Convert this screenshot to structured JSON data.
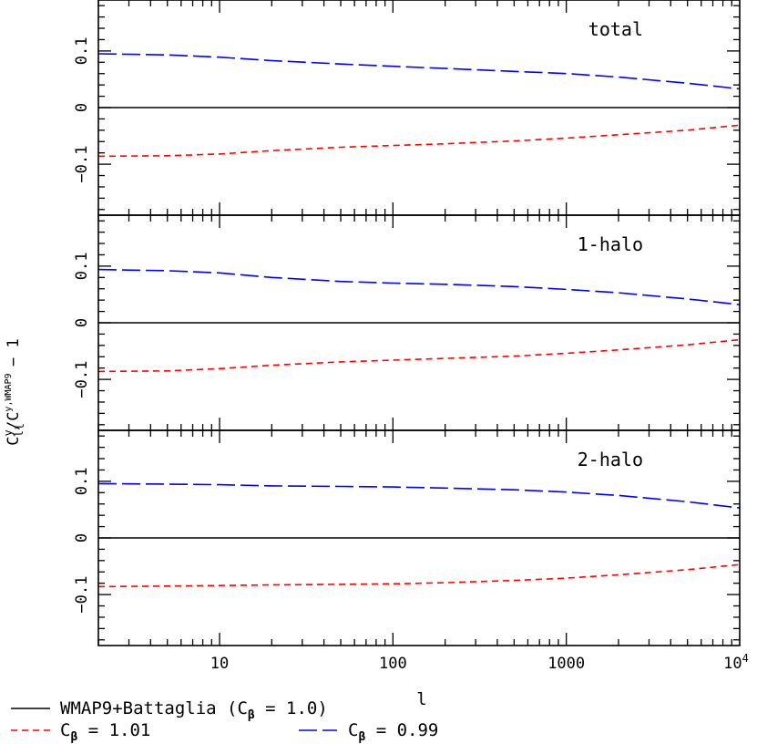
{
  "chart_data": {
    "type": "line",
    "xscale": "log",
    "xlim": [
      2,
      10000
    ],
    "ylim": [
      -0.19,
      0.19
    ],
    "xlabel": "l",
    "ylabel": "C_l^y/C_l^{y,WMAP9} − 1",
    "ylabel_main": "C",
    "ylabel_sup1": "y",
    "ylabel_sub1": "l",
    "ylabel_slash": "/C",
    "ylabel_sup2": "y,WMAP9",
    "ylabel_sub2": "l",
    "ylabel_tail": " − 1",
    "x_ticks": [
      {
        "value": 10,
        "label": "10"
      },
      {
        "value": 100,
        "label": "100"
      },
      {
        "value": 1000,
        "label": "1000"
      },
      {
        "value": 10000,
        "label": "10",
        "sup": "4"
      }
    ],
    "y_ticks": [
      {
        "value": 0.1,
        "label": "0.1"
      },
      {
        "value": 0,
        "label": "0"
      },
      {
        "value": -0.1,
        "label": "−0.1"
      }
    ],
    "legend": {
      "position": "bottom",
      "entries": [
        {
          "label": "WMAP9+Battaglia (C",
          "sub": "β",
          "tail": " = 1.0)",
          "style": "solid",
          "color": "#000000"
        },
        {
          "label": "C",
          "sub": "β",
          "tail": " = 1.01",
          "style": "short-dash",
          "color": "#ff0000"
        },
        {
          "label": "C",
          "sub": "β",
          "tail": " = 0.99",
          "style": "long-dash",
          "color": "#0000ff"
        }
      ]
    },
    "panels": [
      {
        "title": "total",
        "series": [
          {
            "style": "solid",
            "color": "#000000",
            "x": [
              2,
              10000
            ],
            "y": [
              0,
              0
            ]
          },
          {
            "style": "short-dash",
            "color": "#ff0000",
            "x": [
              2,
              5,
              10,
              20,
              50,
              100,
              200,
              500,
              1000,
              2000,
              5000,
              10000
            ],
            "y": [
              -0.086,
              -0.085,
              -0.082,
              -0.076,
              -0.07,
              -0.067,
              -0.064,
              -0.059,
              -0.054,
              -0.048,
              -0.04,
              -0.031
            ]
          },
          {
            "style": "long-dash",
            "color": "#0000ff",
            "x": [
              2,
              5,
              10,
              20,
              50,
              100,
              200,
              500,
              1000,
              2000,
              5000,
              10000
            ],
            "y": [
              0.095,
              0.093,
              0.089,
              0.083,
              0.077,
              0.073,
              0.069,
              0.064,
              0.06,
              0.054,
              0.043,
              0.033
            ]
          }
        ]
      },
      {
        "title": "1-halo",
        "series": [
          {
            "style": "solid",
            "color": "#000000",
            "x": [
              2,
              10000
            ],
            "y": [
              0,
              0
            ]
          },
          {
            "style": "short-dash",
            "color": "#ff0000",
            "x": [
              2,
              5,
              10,
              20,
              50,
              100,
              200,
              500,
              1000,
              2000,
              5000,
              10000
            ],
            "y": [
              -0.086,
              -0.085,
              -0.081,
              -0.075,
              -0.069,
              -0.066,
              -0.063,
              -0.059,
              -0.054,
              -0.048,
              -0.039,
              -0.03
            ]
          },
          {
            "style": "long-dash",
            "color": "#0000ff",
            "x": [
              2,
              5,
              10,
              20,
              50,
              100,
              200,
              500,
              1000,
              2000,
              5000,
              10000
            ],
            "y": [
              0.094,
              0.092,
              0.088,
              0.08,
              0.073,
              0.07,
              0.068,
              0.064,
              0.059,
              0.053,
              0.042,
              0.032
            ]
          }
        ]
      },
      {
        "title": "2-halo",
        "series": [
          {
            "style": "solid",
            "color": "#000000",
            "x": [
              2,
              10000
            ],
            "y": [
              0,
              0
            ]
          },
          {
            "style": "short-dash",
            "color": "#ff0000",
            "x": [
              2,
              5,
              10,
              20,
              50,
              100,
              200,
              500,
              1000,
              2000,
              5000,
              10000
            ],
            "y": [
              -0.086,
              -0.085,
              -0.084,
              -0.083,
              -0.082,
              -0.081,
              -0.079,
              -0.075,
              -0.071,
              -0.065,
              -0.056,
              -0.047
            ]
          },
          {
            "style": "long-dash",
            "color": "#0000ff",
            "x": [
              2,
              5,
              10,
              20,
              50,
              100,
              200,
              500,
              1000,
              2000,
              5000,
              10000
            ],
            "y": [
              0.096,
              0.095,
              0.094,
              0.092,
              0.091,
              0.09,
              0.088,
              0.085,
              0.081,
              0.075,
              0.064,
              0.053
            ]
          }
        ]
      }
    ]
  }
}
